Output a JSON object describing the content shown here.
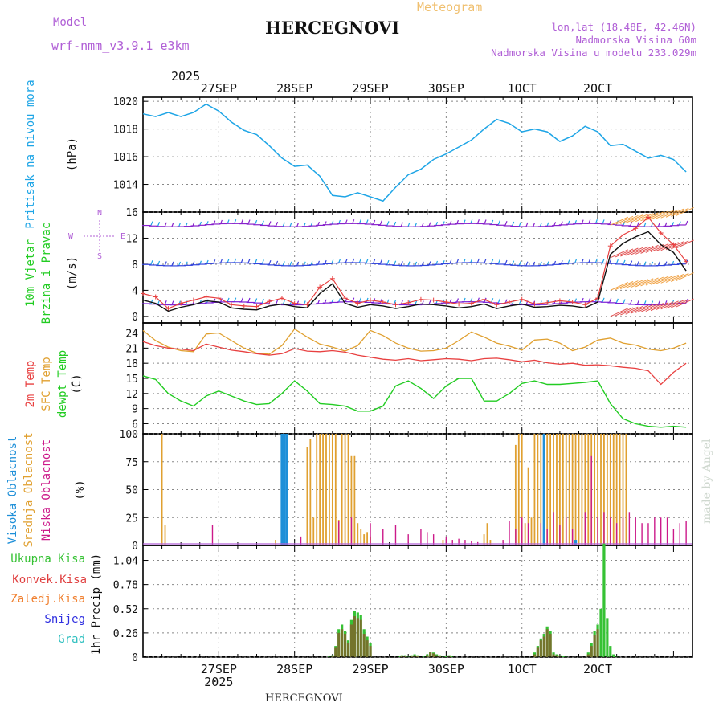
{
  "header": {
    "title": "HERCEGNOVI",
    "subtitle": "Meteogram",
    "model_label": "Model",
    "model_name": "wrf-nmm_v3.9.1 e3km",
    "lonlat": "lon,lat (18.48E, 42.46N)",
    "elevation": "Nadmorska Visina 60m",
    "model_elevation": "Nadmorska Visina u modelu 233.029m",
    "watermark": "made by Angel",
    "footer": "HERCEGNOVI"
  },
  "colors": {
    "pressure": "#1ea5e6",
    "dewpt": "#22cc22",
    "t2m": "#e84040",
    "sfc": "#e0a030",
    "high_cloud": "#1e8fd8",
    "mid_cloud": "#e0a030",
    "low_cloud": "#cc1a8a",
    "total_precip": "#36c234",
    "conv_precip": "#e04040",
    "frozen": "#f08030",
    "snow": "#3030e0",
    "grad": "#30c0c0",
    "wind_line": "#111111",
    "gust": "#e84040",
    "barb_low": "#7a1fd6",
    "barb_mid": "#3344dd",
    "barb_high": "#8822cc"
  },
  "chart_data": [
    {
      "type": "line",
      "title": "Pritisak na nivou mora",
      "ylabel": "(hPa)",
      "ylim": [
        1012,
        1020.3
      ],
      "yticks": [
        1014,
        1016,
        1018,
        1020
      ],
      "x_unit": "hours from 2025-09-26 12:00",
      "x": [
        0,
        4,
        8,
        12,
        16,
        20,
        24,
        28,
        32,
        36,
        40,
        44,
        48,
        52,
        56,
        60,
        64,
        68,
        72,
        76,
        80,
        84,
        88,
        92,
        96,
        100,
        104,
        108,
        112,
        116,
        120,
        124,
        128,
        132,
        136,
        140,
        144,
        148,
        152,
        156,
        160,
        164,
        168,
        172
      ],
      "series": [
        {
          "name": "Pritisak na nivou mora",
          "values": [
            1019.1,
            1018.9,
            1019.2,
            1018.9,
            1019.2,
            1019.8,
            1019.3,
            1018.5,
            1017.9,
            1017.6,
            1016.8,
            1015.9,
            1015.3,
            1015.4,
            1014.6,
            1013.2,
            1013.1,
            1013.4,
            1013.1,
            1012.8,
            1013.8,
            1014.7,
            1015.1,
            1015.8,
            1016.2,
            1016.7,
            1017.2,
            1018.0,
            1018.7,
            1018.4,
            1017.8,
            1018.0,
            1017.8,
            1017.1,
            1017.5,
            1018.2,
            1017.8,
            1016.8,
            1016.9,
            1016.4,
            1015.9,
            1016.1,
            1015.8,
            1014.9
          ]
        }
      ]
    },
    {
      "type": "line",
      "title": "10m Vjetar Brzina i Pravac",
      "ylabel": "(m/s)",
      "ylim": [
        -1,
        16
      ],
      "yticks": [
        0,
        4,
        8,
        12,
        16
      ],
      "x": [
        0,
        4,
        8,
        12,
        16,
        20,
        24,
        28,
        32,
        36,
        40,
        44,
        48,
        52,
        56,
        60,
        64,
        68,
        72,
        76,
        80,
        84,
        88,
        92,
        96,
        100,
        104,
        108,
        112,
        116,
        120,
        124,
        128,
        132,
        136,
        140,
        144,
        148,
        152,
        156,
        160,
        164,
        168,
        172
      ],
      "series": [
        {
          "name": "Brzina vjetra",
          "values": [
            2.5,
            2.0,
            0.8,
            1.4,
            1.8,
            2.4,
            2.2,
            1.3,
            1.1,
            1.0,
            1.6,
            1.9,
            1.5,
            1.3,
            3.5,
            5.0,
            2.0,
            1.4,
            1.8,
            1.6,
            1.2,
            1.5,
            1.9,
            1.8,
            1.6,
            1.3,
            1.5,
            1.9,
            1.2,
            1.6,
            1.9,
            1.4,
            1.5,
            1.7,
            1.6,
            1.3,
            2.2,
            9.5,
            11.2,
            12.2,
            13.0,
            11.0,
            9.8,
            7.0
          ]
        },
        {
          "name": "Udari vjetra",
          "values": [
            3.5,
            3.0,
            1.2,
            2.0,
            2.5,
            3.0,
            2.8,
            1.8,
            1.6,
            1.5,
            2.3,
            2.8,
            2.0,
            1.8,
            4.5,
            5.8,
            2.8,
            2.0,
            2.5,
            2.2,
            1.8,
            2.1,
            2.6,
            2.5,
            2.2,
            1.9,
            2.0,
            2.6,
            1.8,
            2.2,
            2.6,
            1.9,
            2.1,
            2.4,
            2.2,
            1.8,
            2.8,
            10.8,
            12.5,
            13.5,
            15.2,
            12.8,
            11.0,
            8.4
          ]
        }
      ],
      "annotations": [
        "N",
        "W",
        "E",
        "S"
      ],
      "barb_levels_ms": [
        2,
        8,
        14
      ]
    },
    {
      "type": "line",
      "title": "2m Temp / SFC Temp / dewpt Temp",
      "ylabel": "(C)",
      "ylim": [
        4,
        26
      ],
      "yticks": [
        6,
        9,
        12,
        15,
        18,
        21,
        24
      ],
      "x": [
        0,
        4,
        8,
        12,
        16,
        20,
        24,
        28,
        32,
        36,
        40,
        44,
        48,
        52,
        56,
        60,
        64,
        68,
        72,
        76,
        80,
        84,
        88,
        92,
        96,
        100,
        104,
        108,
        112,
        116,
        120,
        124,
        128,
        132,
        136,
        140,
        144,
        148,
        152,
        156,
        160,
        164,
        168,
        172
      ],
      "series": [
        {
          "name": "2m Temp",
          "values": [
            22.3,
            21.5,
            21.0,
            20.8,
            20.5,
            21.8,
            21.2,
            20.6,
            20.3,
            19.9,
            19.6,
            19.9,
            20.9,
            20.4,
            20.3,
            20.5,
            20.2,
            19.6,
            19.2,
            18.8,
            18.6,
            18.9,
            18.5,
            18.7,
            18.9,
            18.8,
            18.5,
            18.9,
            19.0,
            18.7,
            18.3,
            18.6,
            18.1,
            17.8,
            18.0,
            17.6,
            17.7,
            17.5,
            17.2,
            17.0,
            16.5,
            13.8,
            16.2,
            18.0
          ]
        },
        {
          "name": "SFC Temp",
          "values": [
            24.5,
            22.5,
            21.2,
            20.5,
            20.3,
            23.8,
            24.0,
            22.5,
            21.0,
            20.0,
            19.8,
            21.5,
            24.8,
            23.2,
            21.8,
            21.2,
            20.4,
            21.5,
            24.5,
            23.5,
            22.0,
            21.0,
            20.4,
            20.5,
            21.0,
            22.5,
            24.2,
            23.2,
            22.0,
            21.4,
            20.6,
            22.6,
            22.8,
            22.0,
            20.5,
            21.2,
            22.6,
            23.0,
            22.0,
            21.6,
            20.8,
            20.5,
            21.0,
            22.0
          ]
        },
        {
          "name": "dewpt Temp",
          "values": [
            15.5,
            14.8,
            12.0,
            10.5,
            9.5,
            11.5,
            12.5,
            11.5,
            10.5,
            9.8,
            10.0,
            12.0,
            14.5,
            12.5,
            10.0,
            9.8,
            9.5,
            8.5,
            8.5,
            9.5,
            13.5,
            14.5,
            13.0,
            11.0,
            13.5,
            15.0,
            15.0,
            10.5,
            10.5,
            12.0,
            14.0,
            14.5,
            13.8,
            13.8,
            14.0,
            14.2,
            14.5,
            10.0,
            7.0,
            6.0,
            5.5,
            5.3,
            5.5,
            5.3
          ]
        }
      ]
    },
    {
      "type": "bar",
      "title": "Visoka / Srednja / Niska Oblacnost",
      "ylabel": "(%)",
      "ylim": [
        0,
        100
      ],
      "yticks": [
        0,
        25,
        50,
        75,
        100
      ],
      "series": [
        {
          "name": "Visoka Oblacnost",
          "x": [
            44,
            44.8,
            45.6,
            127,
            137
          ],
          "values": [
            100,
            100,
            100,
            100,
            5
          ]
        },
        {
          "name": "Srednja Oblacnost",
          "x": [
            6,
            7,
            42,
            52,
            53,
            54,
            55,
            56,
            57,
            58,
            59,
            60,
            61,
            62,
            63,
            64,
            65,
            66,
            67,
            68,
            69,
            70,
            71,
            72,
            95,
            108,
            109,
            110,
            118,
            119,
            120,
            121,
            122,
            123,
            124,
            125,
            126,
            127,
            128,
            129,
            130,
            131,
            132,
            133,
            134,
            135,
            136,
            137,
            138,
            139,
            140,
            141,
            142,
            143,
            144,
            145,
            146,
            147,
            148,
            149,
            150,
            151,
            152,
            153
          ],
          "values": [
            100,
            18,
            5,
            88,
            95,
            25,
            100,
            100,
            100,
            100,
            100,
            100,
            100,
            23,
            100,
            100,
            100,
            80,
            80,
            20,
            15,
            10,
            12,
            8,
            5,
            10,
            20,
            5,
            90,
            100,
            100,
            20,
            70,
            25,
            100,
            100,
            100,
            15,
            100,
            100,
            100,
            100,
            100,
            100,
            100,
            100,
            100,
            100,
            100,
            100,
            100,
            100,
            100,
            100,
            100,
            100,
            100,
            100,
            100,
            100,
            100,
            100,
            100,
            100
          ]
        },
        {
          "name": "Niska Oblacnost",
          "x": [
            22,
            50,
            62,
            66,
            72,
            76,
            80,
            84,
            88,
            90,
            92,
            96,
            98,
            100,
            102,
            104,
            106,
            114,
            116,
            118,
            120,
            122,
            126,
            128,
            130,
            132,
            134,
            136,
            140,
            142,
            144,
            146,
            148,
            150,
            152,
            154,
            156,
            158,
            160,
            162,
            164,
            166,
            168,
            170,
            172
          ],
          "values": [
            18,
            8,
            22,
            25,
            20,
            15,
            18,
            10,
            15,
            12,
            10,
            8,
            5,
            6,
            5,
            4,
            3,
            5,
            22,
            15,
            25,
            20,
            20,
            15,
            30,
            18,
            25,
            15,
            30,
            80,
            25,
            30,
            25,
            20,
            25,
            30,
            25,
            20,
            20,
            25,
            25,
            25,
            15,
            20,
            22
          ]
        }
      ]
    },
    {
      "type": "bar",
      "title": "1hr Precip",
      "ylabel": "1hr Precip (mm)",
      "ylim": [
        0,
        1.2
      ],
      "yticks": [
        0,
        0.26,
        0.52,
        0.78,
        1.04
      ],
      "legend": [
        "Ukupna Kisa",
        "Konvek.Kisa",
        "Zaledj.Kisa",
        "Snijeg",
        "Grad"
      ],
      "x": [
        59,
        60,
        61,
        62,
        63,
        64,
        65,
        66,
        67,
        68,
        69,
        70,
        71,
        72,
        81,
        82,
        83,
        84,
        85,
        86,
        87,
        89,
        90,
        91,
        92,
        93,
        94,
        95,
        96,
        97,
        98,
        124,
        125,
        126,
        127,
        128,
        129,
        130,
        131,
        132,
        133,
        134,
        141,
        142,
        143,
        144,
        145,
        146,
        147,
        148,
        149,
        150
      ],
      "series": [
        {
          "name": "Ukupna Kisa",
          "values": [
            0.01,
            0.02,
            0.12,
            0.3,
            0.35,
            0.28,
            0.18,
            0.4,
            0.5,
            0.48,
            0.45,
            0.3,
            0.22,
            0.15,
            0.01,
            0.02,
            0.02,
            0.01,
            0.02,
            0.03,
            0.02,
            0.01,
            0.03,
            0.06,
            0.05,
            0.03,
            0.02,
            0.01,
            0.01,
            0.02,
            0.01,
            0.05,
            0.12,
            0.2,
            0.25,
            0.33,
            0.28,
            0.05,
            0.03,
            0.02,
            0.01,
            0.01,
            0.05,
            0.15,
            0.28,
            0.35,
            0.52,
            1.22,
            0.42,
            0.12,
            0.03,
            0.01
          ]
        },
        {
          "name": "Konvek.Kisa",
          "values": [
            0.0,
            0.01,
            0.1,
            0.26,
            0.3,
            0.25,
            0.15,
            0.35,
            0.44,
            0.42,
            0.4,
            0.25,
            0.18,
            0.12,
            0.0,
            0.01,
            0.01,
            0.0,
            0.01,
            0.02,
            0.01,
            0.0,
            0.02,
            0.05,
            0.04,
            0.02,
            0.01,
            0.0,
            0.0,
            0.01,
            0.0,
            0.03,
            0.1,
            0.18,
            0.22,
            0.3,
            0.25,
            0.03,
            0.02,
            0.01,
            0.0,
            0.0,
            0.03,
            0.12,
            0.24,
            0.3,
            0.0,
            0.0,
            0.0,
            0.0,
            0.0,
            0.0
          ]
        }
      ]
    }
  ],
  "axes": {
    "year": "2025",
    "day_labels": [
      "27SEP",
      "28SEP",
      "29SEP",
      "30SEP",
      "1OCT",
      "2OCT"
    ],
    "bottom_day_labels": [
      "27SEP",
      "28SEP",
      "29SEP",
      "30SEP",
      "1OCT",
      "2OCT"
    ],
    "panel1_labels": [
      "Pritisak na nivou mora",
      "(hPa)"
    ],
    "panel2_labels": [
      "10m Vjetar",
      "Brzina i Pravac",
      "(m/s)"
    ],
    "panel3_labels": [
      "2m Temp",
      "SFC Temp",
      "dewpt Temp",
      "(C)"
    ],
    "panel4_labels": [
      "Visoka Oblacnost",
      "Srednja Oblacnost",
      "Niska Oblacnost",
      "(%)"
    ],
    "panel5_labels": [
      "Ukupna Kisa",
      "Konvek.Kisa",
      "Zaledj.Kisa",
      "Snijeg",
      "Grad",
      "1hr Precip (mm)"
    ]
  }
}
